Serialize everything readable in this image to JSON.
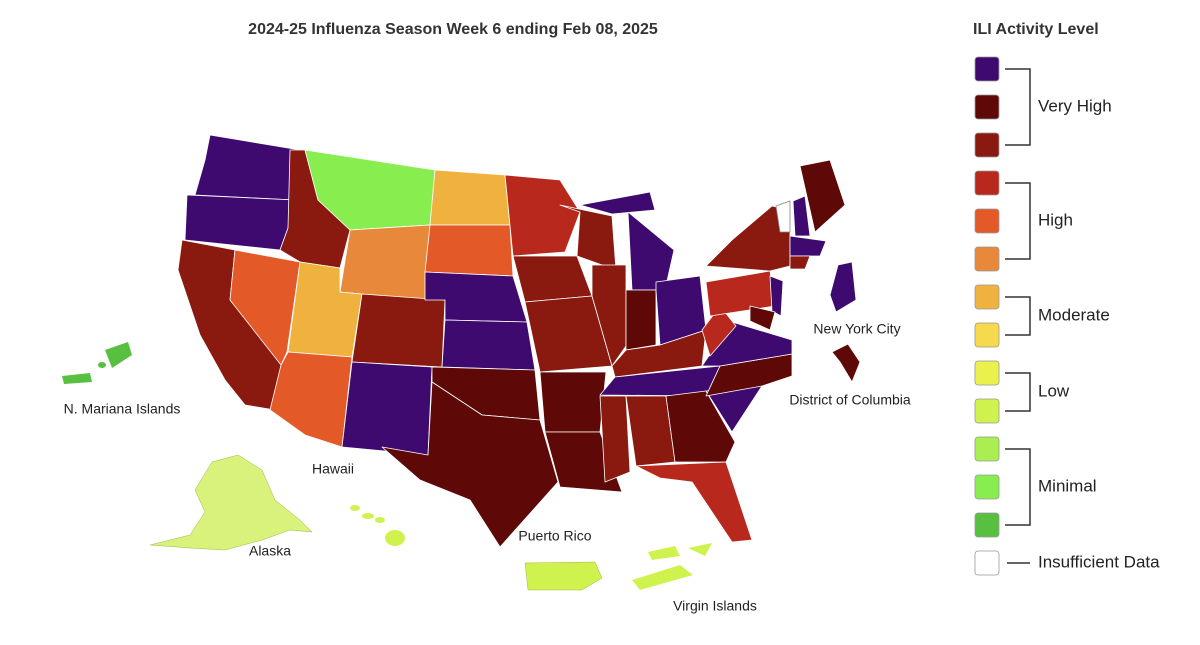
{
  "title": "2024-25 Influenza Season Week 6 ending Feb 08, 2025",
  "legend": {
    "title": "ILI Activity Level",
    "groups": [
      {
        "label": "Very High",
        "colors": [
          "#3f0a70",
          "#5e0808",
          "#8a1a10"
        ]
      },
      {
        "label": "High",
        "colors": [
          "#b8281c",
          "#e35a28",
          "#e8883a"
        ]
      },
      {
        "label": "Moderate",
        "colors": [
          "#f0b23f",
          "#f6d94c"
        ]
      },
      {
        "label": "Low",
        "colors": [
          "#eaf04c",
          "#cff24e"
        ]
      },
      {
        "label": "Minimal",
        "colors": [
          "#aaee52",
          "#88ee50",
          "#58c040"
        ]
      },
      {
        "label": "Insufficient Data",
        "colors": [
          "#ffffff"
        ]
      }
    ]
  },
  "map_labels": [
    "N. Mariana Islands",
    "Hawaii",
    "Alaska",
    "Puerto Rico",
    "Virgin Islands",
    "New York City",
    "District of Columbia"
  ]
}
